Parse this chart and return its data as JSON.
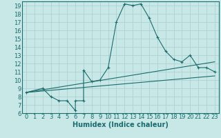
{
  "xlabel": "Humidex (Indice chaleur)",
  "background_color": "#c8e8e8",
  "grid_color": "#aacccc",
  "line_color": "#1a6b6b",
  "xlim": [
    -0.5,
    23.5
  ],
  "ylim": [
    6,
    19.5
  ],
  "xticks": [
    0,
    1,
    2,
    3,
    4,
    5,
    6,
    7,
    8,
    9,
    10,
    11,
    12,
    13,
    14,
    15,
    16,
    17,
    18,
    19,
    20,
    21,
    22,
    23
  ],
  "yticks": [
    6,
    7,
    8,
    9,
    10,
    11,
    12,
    13,
    14,
    15,
    16,
    17,
    18,
    19
  ],
  "line1_x": [
    0,
    2,
    3,
    4,
    5,
    6,
    6,
    7,
    7,
    8,
    9,
    10,
    11,
    12,
    13,
    14,
    15,
    16,
    17,
    18,
    19,
    20,
    21,
    22,
    23
  ],
  "line1_y": [
    8.5,
    9.0,
    8.0,
    7.5,
    7.5,
    6.3,
    7.5,
    7.5,
    11.2,
    9.8,
    10.0,
    11.5,
    17.0,
    19.2,
    19.0,
    19.2,
    17.5,
    15.2,
    13.5,
    12.5,
    12.2,
    13.0,
    11.5,
    11.5,
    11.0
  ],
  "line2_x": [
    0,
    23
  ],
  "line2_y": [
    8.5,
    10.5
  ],
  "line3_x": [
    0,
    23
  ],
  "line3_y": [
    8.5,
    12.2
  ],
  "xlabel_fontsize": 7,
  "tick_fontsize": 6,
  "figsize": [
    3.2,
    2.0
  ],
  "dpi": 100
}
